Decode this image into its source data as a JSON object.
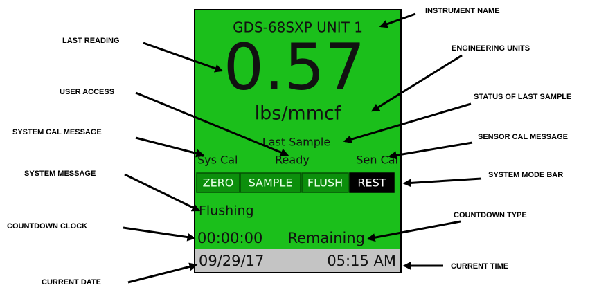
{
  "screen": {
    "instrument_name": "GDS-68SXP UNIT 1",
    "reading": "0.57",
    "units": "lbs/mmcf",
    "last_sample_status": "Last Sample",
    "sys_cal": "Sys Cal",
    "user_access": "Ready",
    "sen_cal": "Sen Cal",
    "mode_bar": [
      "ZERO",
      "SAMPLE",
      "FLUSH",
      "REST"
    ],
    "system_message": "Flushing",
    "countdown_clock": "00:00:00",
    "countdown_type": "Remaining",
    "date": "09/29/17",
    "time": "05:15 AM"
  },
  "callouts": {
    "instrument_name": "INSTRUMENT NAME",
    "last_reading": "LAST READING",
    "engineering_units": "ENGINEERING UNITS",
    "user_access": "USER ACCESS",
    "status_of_last_sample": "STATUS OF LAST SAMPLE",
    "system_cal_message": "SYSTEM CAL MESSAGE",
    "sensor_cal_message": "SENSOR CAL MESSAGE",
    "system_message": "SYSTEM MESSAGE",
    "system_mode_bar": "SYSTEM MODE BAR",
    "countdown_type": "COUNTDOWN TYPE",
    "countdown_clock": "COUNTDOWN CLOCK",
    "current_time": "CURRENT TIME",
    "current_date": "CURRENT DATE"
  }
}
